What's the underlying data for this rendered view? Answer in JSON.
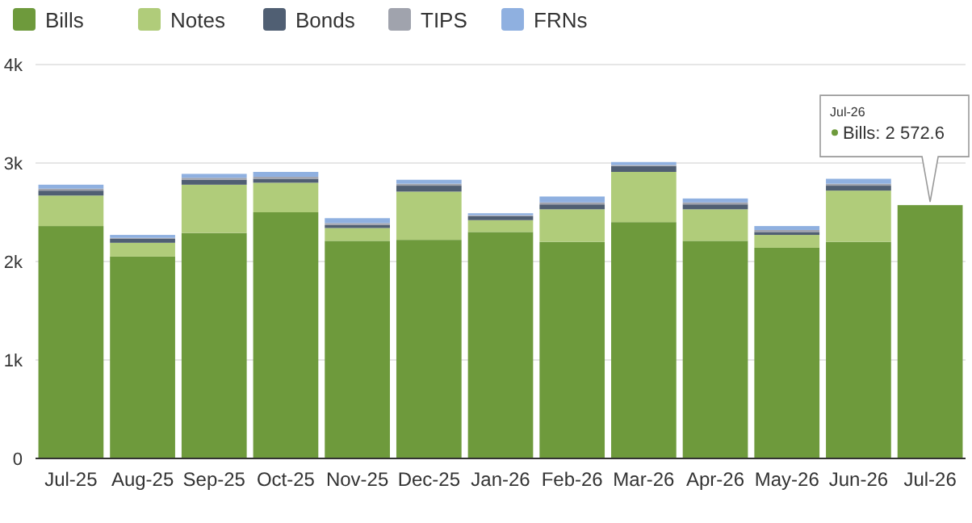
{
  "chart_data": {
    "type": "bar",
    "stacked": true,
    "legend": "top left",
    "grid": "y",
    "categories": [
      "Jul-25",
      "Aug-25",
      "Sep-25",
      "Oct-25",
      "Nov-25",
      "Dec-25",
      "Jan-26",
      "Feb-26",
      "Mar-26",
      "Apr-26",
      "May-26",
      "Jun-26",
      "Jul-26"
    ],
    "ylim": [
      0,
      4000
    ],
    "yticks": [
      {
        "value": 0,
        "label": "0"
      },
      {
        "value": 1000,
        "label": "1k"
      },
      {
        "value": 2000,
        "label": "2k"
      },
      {
        "value": 3000,
        "label": "3k"
      },
      {
        "value": 4000,
        "label": "4k"
      }
    ],
    "series": [
      {
        "name": "Bills",
        "color": "#6e9a3c",
        "values": [
          2360,
          2050,
          2290,
          2500,
          2210,
          2220,
          2300,
          2200,
          2400,
          2210,
          2140,
          2200,
          2572.6
        ]
      },
      {
        "name": "Notes",
        "color": "#b0cc7a",
        "values": [
          310,
          140,
          490,
          300,
          130,
          490,
          120,
          330,
          510,
          320,
          130,
          520,
          null
        ]
      },
      {
        "name": "Bonds",
        "color": "#505f73",
        "values": [
          50,
          40,
          50,
          40,
          30,
          60,
          40,
          50,
          60,
          50,
          30,
          50,
          null
        ]
      },
      {
        "name": "TIPS",
        "color": "#a0a3ad",
        "values": [
          20,
          10,
          20,
          20,
          20,
          20,
          10,
          20,
          10,
          20,
          20,
          20,
          null
        ]
      },
      {
        "name": "FRNs",
        "color": "#8fb0e0",
        "values": [
          40,
          30,
          40,
          50,
          50,
          40,
          20,
          60,
          30,
          40,
          40,
          50,
          null
        ]
      }
    ],
    "annotations": [
      "Jul-26\nBills: 2 572.6"
    ]
  }
}
